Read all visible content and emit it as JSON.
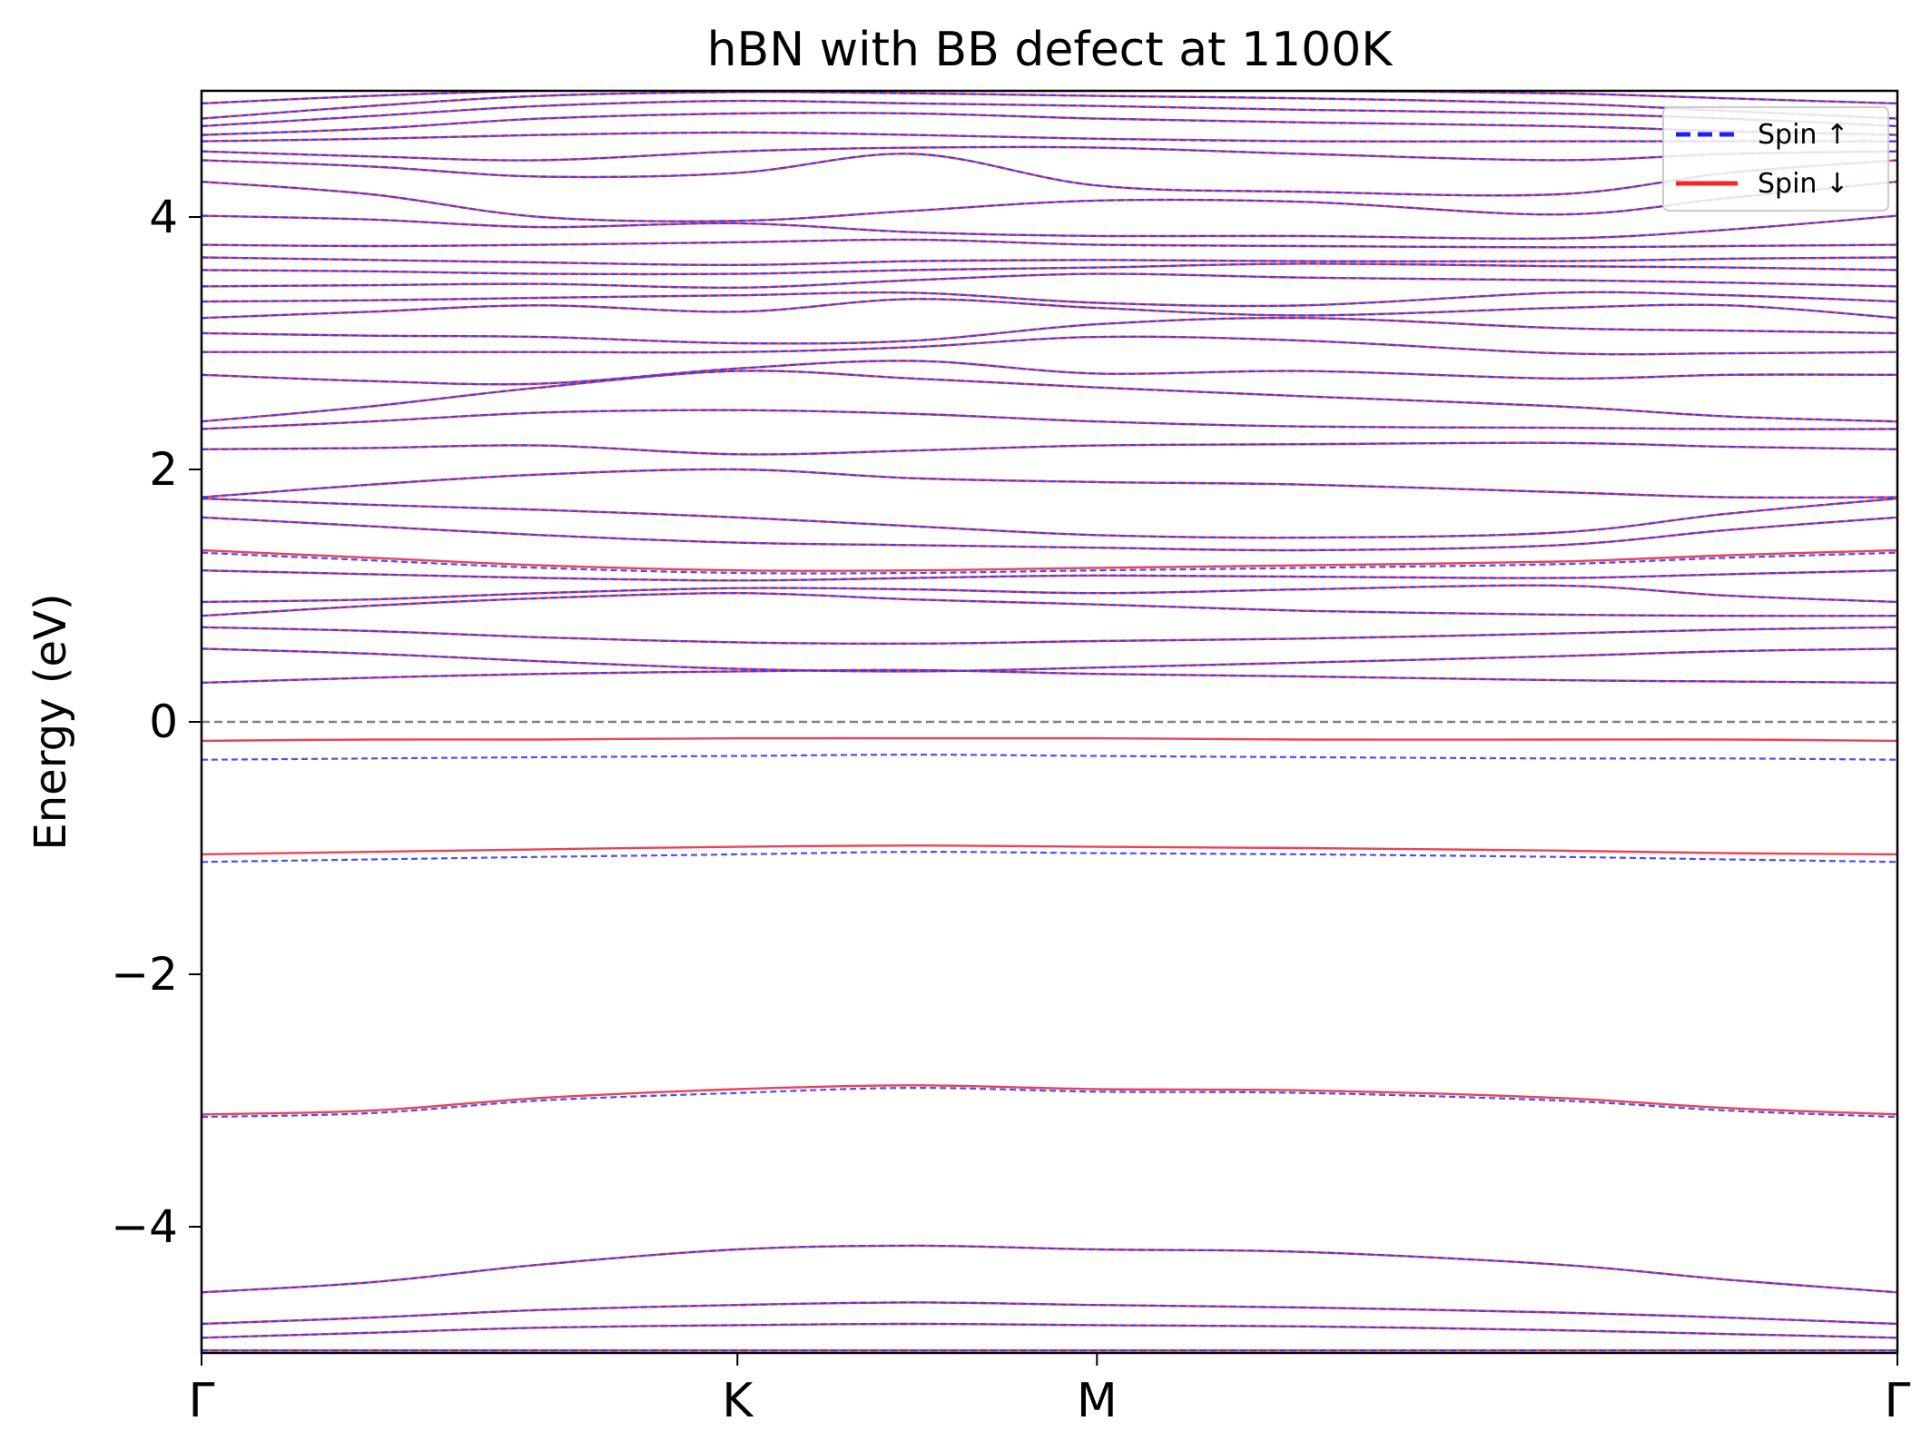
{
  "chart_data": {
    "type": "line",
    "title": "hBN with BB defect at 1100K",
    "xlabel": "",
    "ylabel": "Energy (eV)",
    "ylim": [
      -5,
      5
    ],
    "xlim": [
      0,
      1
    ],
    "x_ticks": [
      {
        "label": "Γ",
        "x": 0.0
      },
      {
        "label": "K",
        "x": 0.316
      },
      {
        "label": "M",
        "x": 0.528
      },
      {
        "label": "Γ",
        "x": 1.0
      }
    ],
    "y_ticks": [
      {
        "label": "−4",
        "value": -4
      },
      {
        "label": "−2",
        "value": -2
      },
      {
        "label": "0",
        "value": 0
      },
      {
        "label": "2",
        "value": 2
      },
      {
        "label": "4",
        "value": 4
      }
    ],
    "fermi_level": 0,
    "legend": {
      "position": "top-right",
      "entries": [
        {
          "label": "Spin ↑",
          "color": "#1f1fff",
          "style": "dashed"
        },
        {
          "label": "Spin ↓",
          "color": "#ff2020",
          "style": "solid"
        }
      ]
    },
    "colors": {
      "spin_up": "#3a3aff",
      "spin_down": "#e8213a",
      "fermi": "#808080"
    },
    "x": [
      0,
      0.1,
      0.2,
      0.316,
      0.42,
      0.528,
      0.65,
      0.8,
      0.9,
      1.0
    ],
    "series": [
      {
        "name": "Spin ↑",
        "bands": [
          [
            -4.98,
            -4.98,
            -4.98,
            -4.98,
            -4.98,
            -4.98,
            -4.98,
            -4.98,
            -4.98,
            -4.98
          ],
          [
            -4.88,
            -4.84,
            -4.8,
            -4.78,
            -4.77,
            -4.78,
            -4.79,
            -4.82,
            -4.85,
            -4.88
          ],
          [
            -4.77,
            -4.72,
            -4.66,
            -4.62,
            -4.6,
            -4.62,
            -4.64,
            -4.68,
            -4.72,
            -4.77
          ],
          [
            -4.52,
            -4.44,
            -4.3,
            -4.18,
            -4.15,
            -4.18,
            -4.2,
            -4.3,
            -4.42,
            -4.52
          ],
          [
            -3.13,
            -3.1,
            -3.0,
            -2.94,
            -2.9,
            -2.93,
            -2.94,
            -3.0,
            -3.08,
            -3.13
          ],
          [
            -1.11,
            -1.09,
            -1.07,
            -1.05,
            -1.03,
            -1.04,
            -1.05,
            -1.07,
            -1.09,
            -1.11
          ],
          [
            -0.3,
            -0.29,
            -0.28,
            -0.27,
            -0.26,
            -0.27,
            -0.28,
            -0.29,
            -0.29,
            -0.3
          ],
          [
            0.31,
            0.35,
            0.38,
            0.4,
            0.41,
            0.38,
            0.36,
            0.33,
            0.32,
            0.31
          ],
          [
            0.58,
            0.54,
            0.48,
            0.42,
            0.4,
            0.43,
            0.47,
            0.52,
            0.56,
            0.58
          ],
          [
            0.75,
            0.72,
            0.67,
            0.63,
            0.62,
            0.64,
            0.66,
            0.7,
            0.73,
            0.75
          ],
          [
            0.84,
            0.92,
            0.98,
            1.02,
            0.97,
            0.93,
            0.88,
            0.85,
            0.84,
            0.84
          ],
          [
            0.95,
            0.97,
            1.02,
            1.06,
            1.05,
            1.02,
            1.05,
            1.08,
            1.0,
            0.95
          ],
          [
            1.2,
            1.17,
            1.14,
            1.12,
            1.14,
            1.16,
            1.15,
            1.14,
            1.17,
            1.2
          ],
          [
            1.34,
            1.28,
            1.22,
            1.18,
            1.18,
            1.2,
            1.22,
            1.25,
            1.3,
            1.34
          ],
          [
            1.62,
            1.55,
            1.48,
            1.42,
            1.4,
            1.38,
            1.36,
            1.4,
            1.52,
            1.62
          ],
          [
            1.77,
            1.72,
            1.68,
            1.62,
            1.55,
            1.48,
            1.46,
            1.5,
            1.65,
            1.77
          ],
          [
            1.78,
            1.88,
            1.96,
            2.0,
            1.93,
            1.9,
            1.88,
            1.82,
            1.78,
            1.78
          ],
          [
            2.16,
            2.17,
            2.19,
            2.12,
            2.15,
            2.19,
            2.2,
            2.21,
            2.18,
            2.16
          ],
          [
            2.32,
            2.38,
            2.45,
            2.47,
            2.44,
            2.38,
            2.34,
            2.33,
            2.32,
            2.32
          ],
          [
            2.38,
            2.5,
            2.65,
            2.78,
            2.72,
            2.65,
            2.58,
            2.5,
            2.42,
            2.38
          ],
          [
            2.75,
            2.7,
            2.68,
            2.8,
            2.86,
            2.76,
            2.78,
            2.72,
            2.75,
            2.75
          ],
          [
            2.93,
            2.93,
            2.93,
            2.93,
            2.97,
            3.05,
            3.02,
            2.92,
            2.92,
            2.93
          ],
          [
            3.08,
            3.06,
            3.05,
            3.0,
            3.02,
            3.15,
            3.2,
            3.12,
            3.1,
            3.08
          ],
          [
            3.2,
            3.25,
            3.3,
            3.25,
            3.35,
            3.28,
            3.22,
            3.28,
            3.3,
            3.2
          ],
          [
            3.33,
            3.34,
            3.36,
            3.38,
            3.4,
            3.32,
            3.3,
            3.4,
            3.38,
            3.33
          ],
          [
            3.45,
            3.46,
            3.47,
            3.44,
            3.5,
            3.55,
            3.52,
            3.5,
            3.48,
            3.45
          ],
          [
            3.58,
            3.57,
            3.55,
            3.55,
            3.58,
            3.6,
            3.63,
            3.61,
            3.6,
            3.58
          ],
          [
            3.68,
            3.66,
            3.64,
            3.62,
            3.65,
            3.66,
            3.65,
            3.65,
            3.67,
            3.68
          ],
          [
            3.78,
            3.77,
            3.78,
            3.8,
            3.82,
            3.78,
            3.77,
            3.76,
            3.77,
            3.78
          ],
          [
            4.01,
            3.98,
            3.92,
            3.95,
            3.88,
            3.85,
            3.85,
            3.83,
            3.9,
            4.01
          ],
          [
            4.28,
            4.18,
            4.0,
            3.97,
            4.05,
            4.13,
            4.12,
            4.02,
            4.15,
            4.28
          ],
          [
            4.45,
            4.4,
            4.32,
            4.35,
            4.5,
            4.25,
            4.2,
            4.18,
            4.35,
            4.45
          ],
          [
            4.52,
            4.48,
            4.45,
            4.52,
            4.55,
            4.55,
            4.5,
            4.45,
            4.5,
            4.52
          ],
          [
            4.6,
            4.62,
            4.65,
            4.67,
            4.65,
            4.62,
            4.6,
            4.6,
            4.6,
            4.6
          ],
          [
            4.65,
            4.7,
            4.78,
            4.82,
            4.82,
            4.78,
            4.75,
            4.72,
            4.68,
            4.65
          ],
          [
            4.72,
            4.8,
            4.88,
            4.92,
            4.9,
            4.88,
            4.85,
            4.82,
            4.78,
            4.72
          ],
          [
            4.78,
            4.88,
            4.96,
            4.99,
            4.98,
            4.96,
            4.94,
            4.9,
            4.84,
            4.78
          ],
          [
            4.9,
            4.96,
            5.0,
            5.0,
            5.0,
            5.0,
            5.0,
            4.98,
            4.94,
            4.9
          ]
        ]
      },
      {
        "name": "Spin ↓",
        "bands": [
          [
            -4.98,
            -4.98,
            -4.98,
            -4.98,
            -4.98,
            -4.98,
            -4.98,
            -4.98,
            -4.98,
            -4.98
          ],
          [
            -4.88,
            -4.84,
            -4.8,
            -4.78,
            -4.77,
            -4.78,
            -4.79,
            -4.82,
            -4.85,
            -4.88
          ],
          [
            -4.77,
            -4.72,
            -4.66,
            -4.62,
            -4.6,
            -4.62,
            -4.64,
            -4.68,
            -4.72,
            -4.77
          ],
          [
            -4.52,
            -4.44,
            -4.3,
            -4.18,
            -4.15,
            -4.18,
            -4.2,
            -4.3,
            -4.42,
            -4.52
          ],
          [
            -3.11,
            -3.08,
            -2.98,
            -2.91,
            -2.88,
            -2.91,
            -2.92,
            -2.98,
            -3.06,
            -3.11
          ],
          [
            -1.05,
            -1.03,
            -1.01,
            -0.99,
            -0.98,
            -0.99,
            -1.0,
            -1.02,
            -1.04,
            -1.05
          ],
          [
            -0.15,
            -0.14,
            -0.14,
            -0.13,
            -0.13,
            -0.13,
            -0.14,
            -0.14,
            -0.14,
            -0.15
          ],
          [
            0.31,
            0.35,
            0.38,
            0.4,
            0.41,
            0.38,
            0.36,
            0.33,
            0.32,
            0.31
          ],
          [
            0.58,
            0.54,
            0.48,
            0.42,
            0.4,
            0.43,
            0.47,
            0.52,
            0.56,
            0.58
          ],
          [
            0.75,
            0.72,
            0.67,
            0.63,
            0.62,
            0.64,
            0.66,
            0.7,
            0.73,
            0.75
          ],
          [
            0.84,
            0.92,
            0.98,
            1.02,
            0.97,
            0.93,
            0.88,
            0.85,
            0.84,
            0.84
          ],
          [
            0.95,
            0.97,
            1.02,
            1.06,
            1.05,
            1.02,
            1.05,
            1.08,
            1.0,
            0.95
          ],
          [
            1.2,
            1.17,
            1.14,
            1.12,
            1.14,
            1.16,
            1.15,
            1.14,
            1.17,
            1.2
          ],
          [
            1.36,
            1.3,
            1.24,
            1.2,
            1.2,
            1.22,
            1.24,
            1.27,
            1.32,
            1.36
          ],
          [
            1.62,
            1.55,
            1.48,
            1.42,
            1.4,
            1.38,
            1.36,
            1.4,
            1.52,
            1.62
          ],
          [
            1.77,
            1.72,
            1.68,
            1.62,
            1.55,
            1.48,
            1.46,
            1.5,
            1.65,
            1.77
          ],
          [
            1.78,
            1.88,
            1.96,
            2.0,
            1.93,
            1.9,
            1.88,
            1.82,
            1.78,
            1.78
          ],
          [
            2.16,
            2.17,
            2.19,
            2.12,
            2.15,
            2.19,
            2.2,
            2.21,
            2.18,
            2.16
          ],
          [
            2.32,
            2.38,
            2.45,
            2.47,
            2.44,
            2.38,
            2.34,
            2.33,
            2.32,
            2.32
          ],
          [
            2.38,
            2.5,
            2.65,
            2.78,
            2.72,
            2.65,
            2.58,
            2.5,
            2.42,
            2.38
          ],
          [
            2.75,
            2.7,
            2.68,
            2.8,
            2.86,
            2.76,
            2.78,
            2.72,
            2.75,
            2.75
          ],
          [
            2.93,
            2.93,
            2.93,
            2.93,
            2.97,
            3.05,
            3.02,
            2.92,
            2.92,
            2.93
          ],
          [
            3.08,
            3.06,
            3.05,
            3.0,
            3.02,
            3.15,
            3.2,
            3.12,
            3.1,
            3.08
          ],
          [
            3.2,
            3.25,
            3.3,
            3.25,
            3.35,
            3.28,
            3.22,
            3.28,
            3.3,
            3.2
          ],
          [
            3.33,
            3.34,
            3.36,
            3.38,
            3.4,
            3.32,
            3.3,
            3.4,
            3.38,
            3.33
          ],
          [
            3.45,
            3.46,
            3.47,
            3.44,
            3.5,
            3.55,
            3.52,
            3.5,
            3.48,
            3.45
          ],
          [
            3.58,
            3.57,
            3.55,
            3.55,
            3.58,
            3.6,
            3.63,
            3.61,
            3.6,
            3.58
          ],
          [
            3.68,
            3.66,
            3.64,
            3.62,
            3.65,
            3.66,
            3.65,
            3.65,
            3.67,
            3.68
          ],
          [
            3.78,
            3.77,
            3.78,
            3.8,
            3.82,
            3.78,
            3.77,
            3.76,
            3.77,
            3.78
          ],
          [
            4.01,
            3.98,
            3.92,
            3.95,
            3.88,
            3.85,
            3.85,
            3.83,
            3.9,
            4.01
          ],
          [
            4.28,
            4.18,
            4.0,
            3.97,
            4.05,
            4.13,
            4.12,
            4.02,
            4.15,
            4.28
          ],
          [
            4.45,
            4.4,
            4.32,
            4.35,
            4.5,
            4.25,
            4.2,
            4.18,
            4.35,
            4.45
          ],
          [
            4.52,
            4.48,
            4.45,
            4.52,
            4.55,
            4.55,
            4.5,
            4.45,
            4.5,
            4.52
          ],
          [
            4.6,
            4.62,
            4.65,
            4.67,
            4.65,
            4.62,
            4.6,
            4.6,
            4.6,
            4.6
          ],
          [
            4.65,
            4.7,
            4.78,
            4.82,
            4.82,
            4.78,
            4.75,
            4.72,
            4.68,
            4.65
          ],
          [
            4.72,
            4.8,
            4.88,
            4.92,
            4.9,
            4.88,
            4.85,
            4.82,
            4.78,
            4.72
          ],
          [
            4.78,
            4.88,
            4.96,
            4.99,
            4.98,
            4.96,
            4.94,
            4.9,
            4.84,
            4.78
          ],
          [
            4.9,
            4.96,
            5.0,
            5.0,
            5.0,
            5.0,
            5.0,
            4.98,
            4.94,
            4.9
          ]
        ]
      }
    ]
  }
}
